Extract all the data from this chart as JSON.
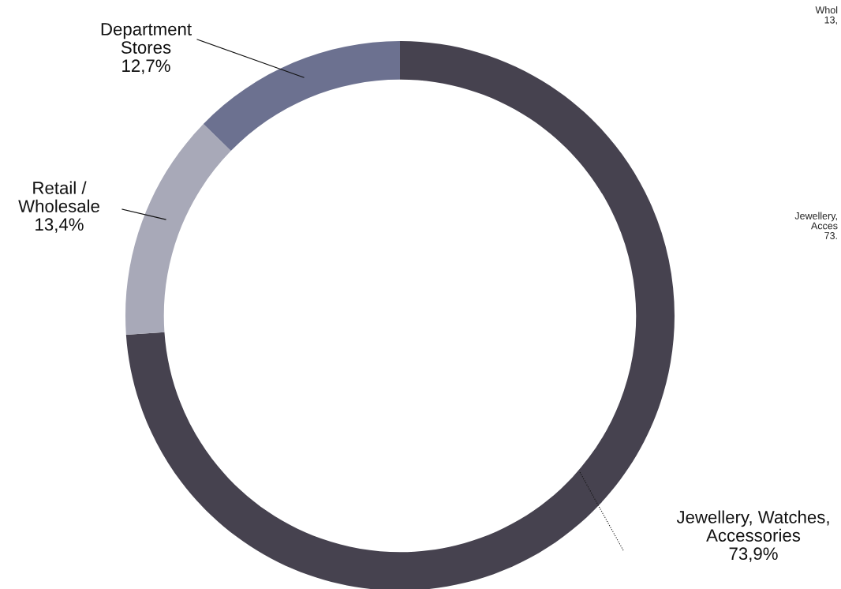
{
  "chart_data": {
    "type": "donut",
    "categories": [
      "Jewellery, Watches,\nAccessories",
      "Retail /\nWholesale",
      "Department\nStores"
    ],
    "values": [
      73.9,
      13.4,
      12.7
    ],
    "value_labels": [
      "73,9%",
      "13,4%",
      "12,7%"
    ],
    "colors": [
      "#46424f",
      "#a8a9b8",
      "#6c7190"
    ],
    "annotations": [
      "Whol\n13,",
      "Jewellery,\nAcces\n73."
    ],
    "legend": false
  }
}
